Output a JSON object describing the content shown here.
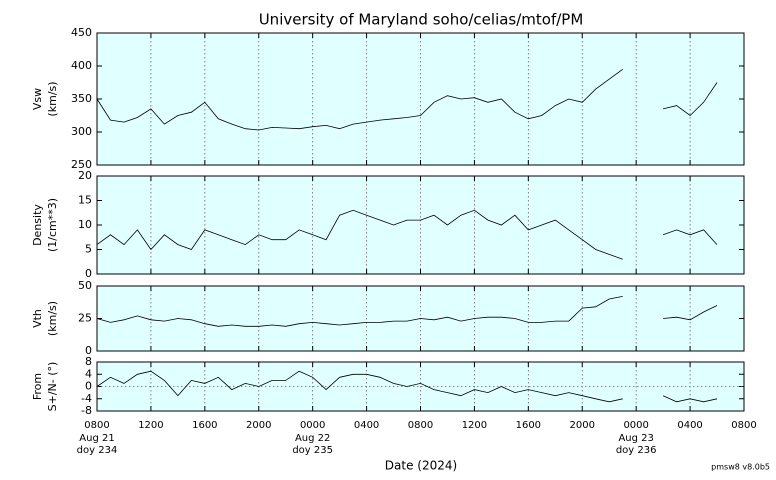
{
  "chart_data": {
    "type": "line",
    "title": "University of Maryland  soho/celias/mtof/PM",
    "xlabel": "Date (2024)",
    "footer": "pmsw8 v8.0b5",
    "xlim": [
      0,
      48
    ],
    "xticks": [
      {
        "value": 0,
        "label": "0800"
      },
      {
        "value": 4,
        "label": "1200"
      },
      {
        "value": 8,
        "label": "1600"
      },
      {
        "value": 12,
        "label": "2000"
      },
      {
        "value": 16,
        "label": "0000"
      },
      {
        "value": 20,
        "label": "0400"
      },
      {
        "value": 24,
        "label": "0800"
      },
      {
        "value": 28,
        "label": "1200"
      },
      {
        "value": 32,
        "label": "1600"
      },
      {
        "value": 36,
        "label": "2000"
      },
      {
        "value": 40,
        "label": "0000"
      },
      {
        "value": 44,
        "label": "0400"
      },
      {
        "value": 48,
        "label": "0800"
      }
    ],
    "date_labels": [
      {
        "value": 0,
        "date": "Aug 21",
        "doy": "doy 234"
      },
      {
        "value": 16,
        "date": "Aug 22",
        "doy": "doy 235"
      },
      {
        "value": 40,
        "date": "Aug 23",
        "doy": "doy 236"
      }
    ],
    "grid": true,
    "background": "#e0ffff",
    "color": "#000000",
    "x": [
      0,
      1,
      2,
      3,
      4,
      5,
      6,
      7,
      8,
      9,
      10,
      11,
      12,
      13,
      14,
      15,
      16,
      17,
      18,
      19,
      20,
      21,
      22,
      23,
      24,
      25,
      26,
      27,
      28,
      29,
      30,
      31,
      32,
      33,
      34,
      35,
      36,
      37,
      38,
      39,
      40,
      41,
      42,
      43,
      44,
      45,
      46
    ],
    "panels": [
      {
        "ylabel": [
          "Vsw",
          "(km/s)"
        ],
        "ylim": [
          250,
          450
        ],
        "yticks": [
          250,
          300,
          350,
          400,
          450
        ],
        "values": [
          350,
          318,
          315,
          322,
          335,
          312,
          325,
          330,
          345,
          320,
          312,
          305,
          303,
          307,
          306,
          305,
          308,
          310,
          305,
          312,
          315,
          318,
          320,
          322,
          325,
          345,
          355,
          350,
          352,
          345,
          350,
          330,
          320,
          325,
          340,
          350,
          345,
          365,
          380,
          395,
          null,
          null,
          335,
          340,
          325,
          345,
          375
        ]
      },
      {
        "ylabel": [
          "Density",
          "(1/cm**3)"
        ],
        "ylim": [
          0,
          20
        ],
        "yticks": [
          0,
          5,
          10,
          15,
          20
        ],
        "values": [
          6,
          8,
          6,
          9,
          5,
          8,
          6,
          5,
          9,
          8,
          7,
          6,
          8,
          7,
          7,
          9,
          8,
          7,
          12,
          13,
          12,
          11,
          10,
          11,
          11,
          12,
          10,
          12,
          13,
          11,
          10,
          12,
          9,
          10,
          11,
          9,
          7,
          5,
          4,
          3,
          null,
          null,
          8,
          9,
          8,
          9,
          6
        ]
      },
      {
        "ylabel": [
          "Vth",
          "(km/s)"
        ],
        "ylim": [
          0,
          50
        ],
        "yticks": [
          0,
          25,
          50
        ],
        "values": [
          25,
          22,
          24,
          27,
          24,
          23,
          25,
          24,
          21,
          19,
          20,
          19,
          19,
          20,
          19,
          21,
          22,
          21,
          20,
          21,
          22,
          22,
          23,
          23,
          25,
          24,
          26,
          23,
          25,
          26,
          26,
          25,
          22,
          22,
          23,
          23,
          33,
          34,
          40,
          42,
          null,
          null,
          25,
          26,
          24,
          30,
          35
        ]
      },
      {
        "ylabel": [
          "From",
          "S+/N- (°)"
        ],
        "ylim": [
          -8,
          8
        ],
        "yticks": [
          -8,
          -4,
          0,
          4,
          8
        ],
        "zero_line": true,
        "values": [
          0,
          3,
          1,
          4,
          5,
          2,
          -3,
          2,
          1,
          3,
          -1,
          1,
          0,
          2,
          2,
          5,
          3,
          -1,
          3,
          4,
          4,
          3,
          1,
          0,
          1,
          -1,
          -2,
          -3,
          -1,
          -2,
          0,
          -2,
          -1,
          -2,
          -3,
          -2,
          -3,
          -4,
          -5,
          -4,
          null,
          null,
          -3,
          -5,
          -4,
          -5,
          -4
        ]
      }
    ]
  }
}
